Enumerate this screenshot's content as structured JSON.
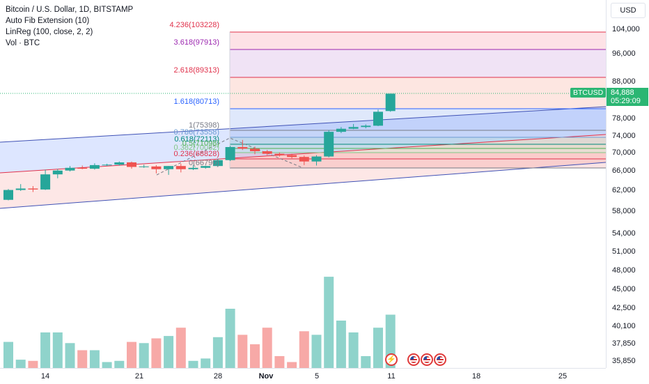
{
  "legend": {
    "symbol_line": "Bitcoin / U.S. Dollar, 1D, BITSTAMP",
    "indicator1": "Auto Fib Extension (10)",
    "indicator2": "LinReg (100, close, 2, 2)",
    "indicator3": "Vol · BTC"
  },
  "price_axis": {
    "currency": "USD",
    "ticks": [
      "104,000",
      "96,000",
      "88,000",
      "78,000",
      "74,000",
      "70,000",
      "66,000",
      "62,000",
      "58,000",
      "54,000",
      "51,000",
      "48,000",
      "45,000",
      "42,500",
      "40,100",
      "37,850",
      "35,850"
    ]
  },
  "current_price": {
    "symbol": "BTCUSD",
    "price": "84,888",
    "countdown": "05:29:09"
  },
  "fib_levels": [
    {
      "label": "4.236(103228)",
      "color": "#e0314b"
    },
    {
      "label": "3.618(97913)",
      "color": "#9c27b0"
    },
    {
      "label": "2.618(89313)",
      "color": "#e0314b"
    },
    {
      "label": "1.618(80713)",
      "color": "#2962ff"
    },
    {
      "label": "1(75398)",
      "color": "#787b86"
    },
    {
      "label": "0.786(73558)",
      "color": "#6b9bd2"
    },
    {
      "label": "0.618(72113)",
      "color": "#00897b"
    },
    {
      "label": "0.5(71098)",
      "color": "#4caf50"
    },
    {
      "label": "0.382(70082)",
      "color": "#81c784"
    },
    {
      "label": "0.236(68828)",
      "color": "#e0314b"
    },
    {
      "label": "0(66790)",
      "color": "#787b86"
    }
  ],
  "time_axis": {
    "ticks": [
      "14",
      "21",
      "28",
      "Nov",
      "5",
      "11",
      "18",
      "25"
    ]
  },
  "colors": {
    "up": "#26a69a",
    "down": "#ef5350",
    "vol_up": "#8fd3cb",
    "vol_down": "#f7a9a7",
    "linreg_upper": "#3f51b5",
    "linreg_mid": "#e0314b"
  },
  "candles": [
    {
      "d": "Oct 10",
      "o": 60300,
      "h": 62400,
      "l": 60200,
      "c": 62200
    },
    {
      "d": "Oct 11",
      "o": 62200,
      "h": 63400,
      "l": 62000,
      "c": 62500
    },
    {
      "d": "Oct 12",
      "o": 62500,
      "h": 63000,
      "l": 61800,
      "c": 62300
    },
    {
      "d": "Oct 13",
      "o": 62300,
      "h": 66400,
      "l": 62200,
      "c": 65400
    },
    {
      "d": "Oct 14",
      "o": 65400,
      "h": 66500,
      "l": 64600,
      "c": 66200
    },
    {
      "d": "Oct 15",
      "o": 66200,
      "h": 67200,
      "l": 66000,
      "c": 66800
    },
    {
      "d": "Oct 16",
      "o": 66800,
      "h": 67300,
      "l": 66500,
      "c": 66600
    },
    {
      "d": "Oct 17",
      "o": 66600,
      "h": 67800,
      "l": 66400,
      "c": 67400
    },
    {
      "d": "Oct 18",
      "o": 67400,
      "h": 67700,
      "l": 67200,
      "c": 67500
    },
    {
      "d": "Oct 19",
      "o": 67500,
      "h": 68200,
      "l": 67300,
      "c": 68000
    },
    {
      "d": "Oct 20",
      "o": 68000,
      "h": 68200,
      "l": 66600,
      "c": 67000
    },
    {
      "d": "Oct 21",
      "o": 67000,
      "h": 67500,
      "l": 66800,
      "c": 67100
    },
    {
      "d": "Oct 22",
      "o": 67100,
      "h": 67400,
      "l": 65600,
      "c": 66500
    },
    {
      "d": "Oct 23",
      "o": 66500,
      "h": 67200,
      "l": 65300,
      "c": 67200
    },
    {
      "d": "Oct 24",
      "o": 67200,
      "h": 67700,
      "l": 65800,
      "c": 66500
    },
    {
      "d": "Oct 25",
      "o": 66500,
      "h": 67400,
      "l": 66300,
      "c": 66800
    },
    {
      "d": "Oct 26",
      "o": 66800,
      "h": 67300,
      "l": 66600,
      "c": 67200
    },
    {
      "d": "Oct 27",
      "o": 67200,
      "h": 68800,
      "l": 67000,
      "c": 68500
    },
    {
      "d": "Oct 28",
      "o": 68500,
      "h": 71800,
      "l": 68300,
      "c": 71500
    },
    {
      "d": "Oct 29",
      "o": 71500,
      "h": 73200,
      "l": 70800,
      "c": 71100
    },
    {
      "d": "Oct 30",
      "o": 71100,
      "h": 71600,
      "l": 69800,
      "c": 70500
    },
    {
      "d": "Oct 31",
      "o": 70500,
      "h": 70800,
      "l": 69600,
      "c": 69900
    },
    {
      "d": "Nov 1",
      "o": 69900,
      "h": 70200,
      "l": 69300,
      "c": 69600
    },
    {
      "d": "Nov 2",
      "o": 69600,
      "h": 69900,
      "l": 68900,
      "c": 69200
    },
    {
      "d": "Nov 3",
      "o": 69200,
      "h": 69500,
      "l": 67400,
      "c": 68200
    },
    {
      "d": "Nov 4",
      "o": 68200,
      "h": 69600,
      "l": 67300,
      "c": 69300
    },
    {
      "d": "Nov 5",
      "o": 69300,
      "h": 75500,
      "l": 69100,
      "c": 75100
    },
    {
      "d": "Nov 6",
      "o": 75100,
      "h": 76200,
      "l": 74800,
      "c": 75800
    },
    {
      "d": "Nov 7",
      "o": 75800,
      "h": 76900,
      "l": 75700,
      "c": 76200
    },
    {
      "d": "Nov 8",
      "o": 76200,
      "h": 76800,
      "l": 75900,
      "c": 76500
    },
    {
      "d": "Nov 9",
      "o": 76500,
      "h": 80600,
      "l": 76400,
      "c": 80000
    },
    {
      "d": "Nov 10",
      "o": 80200,
      "h": 84900,
      "l": 80000,
      "c": 84888
    }
  ],
  "volumes": [
    1.1,
    0.35,
    0.3,
    1.5,
    1.5,
    1.05,
    0.75,
    0.75,
    0.25,
    0.3,
    1.1,
    1.05,
    1.25,
    1.35,
    1.7,
    0.3,
    0.4,
    1.3,
    2.5,
    1.4,
    1.0,
    1.7,
    0.5,
    0.25,
    1.55,
    1.4,
    3.85,
    2.0,
    1.5,
    0.5,
    1.7,
    2.25
  ]
}
